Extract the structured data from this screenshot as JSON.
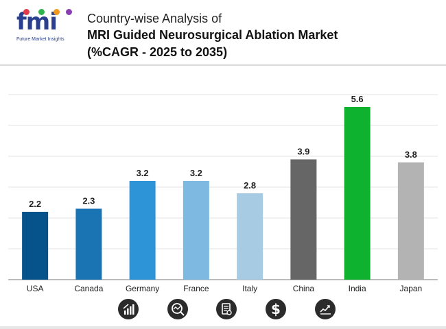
{
  "header": {
    "logo_text": "fmi",
    "logo_tagline": "Future Market Insights",
    "title_line1": "Country-wise Analysis of",
    "title_line2": "MRI Guided Neurosurgical Ablation Market",
    "title_line3": "(%CAGR - 2025 to 2035)"
  },
  "colors": {
    "logo_blue": "#2a3f8f",
    "logo_dots": [
      "#e23b4a",
      "#2fb34a",
      "#f29a1f",
      "#8a3fb0"
    ]
  },
  "chart_data": {
    "type": "bar",
    "title": "Country-wise Analysis of MRI Guided Neurosurgical Ablation Market (%CAGR - 2025 to 2035)",
    "categories": [
      "USA",
      "Canada",
      "Germany",
      "France",
      "Italy",
      "China",
      "India",
      "Japan"
    ],
    "values": [
      2.2,
      2.3,
      3.2,
      3.2,
      2.8,
      3.9,
      5.6,
      3.8
    ],
    "value_labels": [
      "2.2",
      "2.3",
      "3.2",
      "3.2",
      "2.8",
      "3.9",
      "5.6",
      "3.8"
    ],
    "colors": [
      "#06528a",
      "#1a73b3",
      "#2e94d8",
      "#7db9e0",
      "#a8cbe4",
      "#666666",
      "#0fb22f",
      "#b3b3b3"
    ],
    "ylim": [
      0,
      6
    ],
    "grid": true,
    "xlabel": "",
    "ylabel": ""
  },
  "icons": [
    {
      "name": "bar-growth-icon"
    },
    {
      "name": "analysis-icon"
    },
    {
      "name": "report-icon"
    },
    {
      "name": "dollar-icon"
    },
    {
      "name": "trend-chart-icon"
    }
  ]
}
